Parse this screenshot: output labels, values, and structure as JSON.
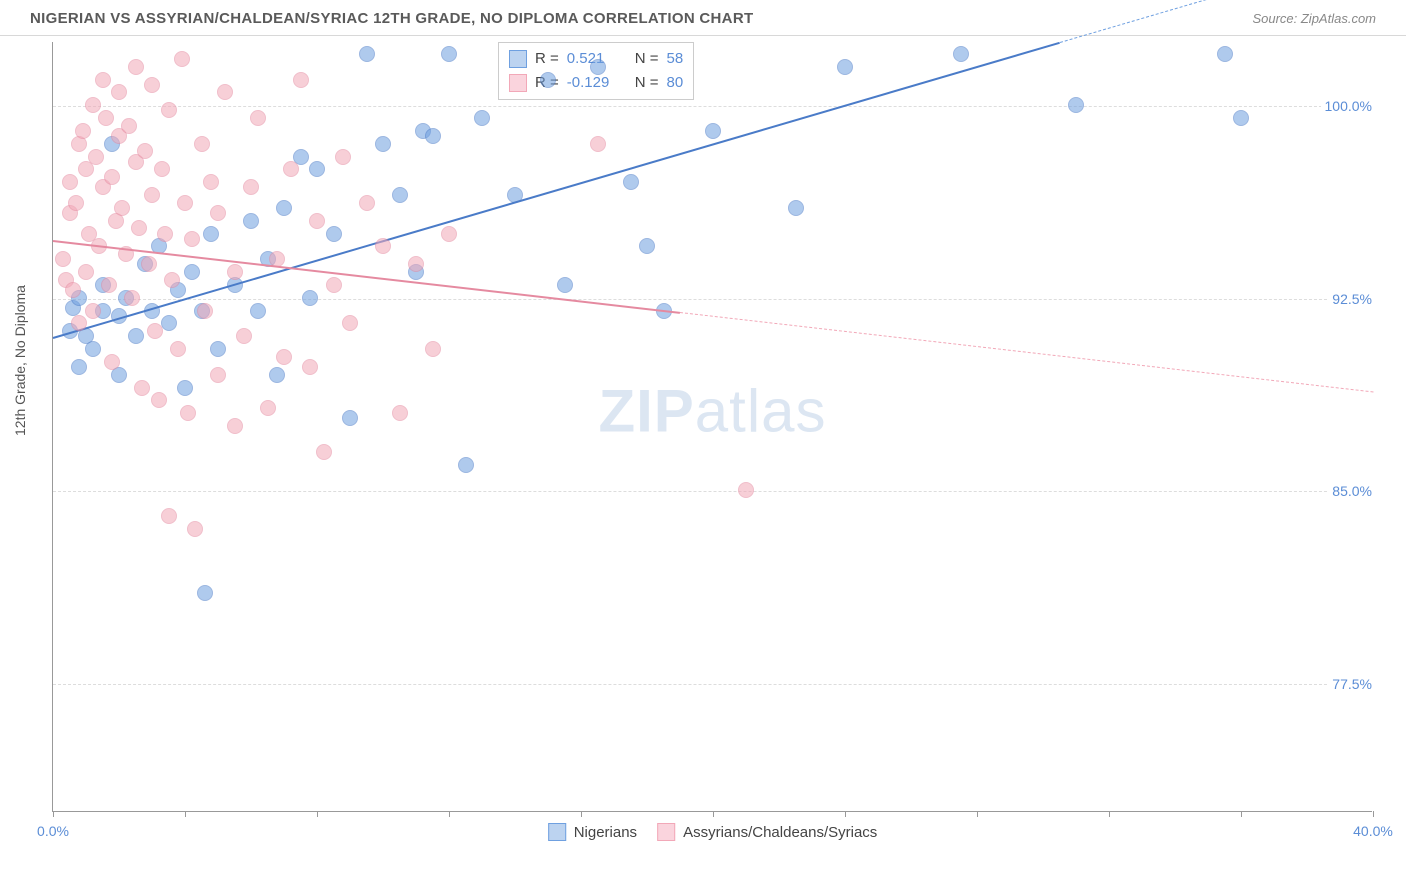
{
  "title": "NIGERIAN VS ASSYRIAN/CHALDEAN/SYRIAC 12TH GRADE, NO DIPLOMA CORRELATION CHART",
  "source": "Source: ZipAtlas.com",
  "ylabel": "12th Grade, No Diploma",
  "watermark_a": "ZIP",
  "watermark_b": "atlas",
  "chart": {
    "type": "scatter",
    "xlim": [
      0,
      40
    ],
    "ylim": [
      72.5,
      102.5
    ],
    "yticks": [
      {
        "v": 77.5,
        "label": "77.5%"
      },
      {
        "v": 85.0,
        "label": "85.0%"
      },
      {
        "v": 92.5,
        "label": "92.5%"
      },
      {
        "v": 100.0,
        "label": "100.0%"
      }
    ],
    "xticks": [
      0,
      4,
      8,
      12,
      16,
      20,
      24,
      28,
      32,
      36,
      40
    ],
    "xtick_labels": {
      "0": "0.0%",
      "40": "40.0%"
    },
    "background_color": "#ffffff",
    "grid_color": "#dddddd",
    "marker_radius": 8,
    "marker_opacity": 0.55,
    "series": [
      {
        "name": "Nigerians",
        "color": "#6fa0e0",
        "border": "#4a7bc8",
        "r_value": "0.521",
        "n_value": "58",
        "trend": {
          "x1": 0,
          "y1": 91.0,
          "x2": 30.5,
          "y2": 102.5,
          "dash_to_x": 40
        },
        "points": [
          [
            0.5,
            91.2
          ],
          [
            0.6,
            92.1
          ],
          [
            0.8,
            92.5
          ],
          [
            0.8,
            89.8
          ],
          [
            1.0,
            91.0
          ],
          [
            1.2,
            90.5
          ],
          [
            1.5,
            92.0
          ],
          [
            1.5,
            93.0
          ],
          [
            1.8,
            98.5
          ],
          [
            2.0,
            91.8
          ],
          [
            2.0,
            89.5
          ],
          [
            2.2,
            92.5
          ],
          [
            2.5,
            91.0
          ],
          [
            2.8,
            93.8
          ],
          [
            3.0,
            92.0
          ],
          [
            3.2,
            94.5
          ],
          [
            3.5,
            91.5
          ],
          [
            3.8,
            92.8
          ],
          [
            4.0,
            89.0
          ],
          [
            4.2,
            93.5
          ],
          [
            4.5,
            92.0
          ],
          [
            4.6,
            81.0
          ],
          [
            4.8,
            95.0
          ],
          [
            5.0,
            90.5
          ],
          [
            5.5,
            93.0
          ],
          [
            6.0,
            95.5
          ],
          [
            6.2,
            92.0
          ],
          [
            6.5,
            94.0
          ],
          [
            6.8,
            89.5
          ],
          [
            7.0,
            96.0
          ],
          [
            7.5,
            98.0
          ],
          [
            7.8,
            92.5
          ],
          [
            8.0,
            97.5
          ],
          [
            8.5,
            95.0
          ],
          [
            9.0,
            87.8
          ],
          [
            9.5,
            102.0
          ],
          [
            10.0,
            98.5
          ],
          [
            10.5,
            96.5
          ],
          [
            11.0,
            93.5
          ],
          [
            11.2,
            99.0
          ],
          [
            11.5,
            98.8
          ],
          [
            12.0,
            102.0
          ],
          [
            12.5,
            86.0
          ],
          [
            13.0,
            99.5
          ],
          [
            14.0,
            96.5
          ],
          [
            15.0,
            101.0
          ],
          [
            15.5,
            93.0
          ],
          [
            16.5,
            101.5
          ],
          [
            17.5,
            97.0
          ],
          [
            18.0,
            94.5
          ],
          [
            18.5,
            92.0
          ],
          [
            20.0,
            99.0
          ],
          [
            22.5,
            96.0
          ],
          [
            24.0,
            101.5
          ],
          [
            27.5,
            102.0
          ],
          [
            31.0,
            100.0
          ],
          [
            35.5,
            102.0
          ],
          [
            36.0,
            99.5
          ]
        ]
      },
      {
        "name": "Assyrians/Chaldeans/Syriacs",
        "color": "#f2a8b8",
        "border": "#e58aa0",
        "r_value": "-0.129",
        "n_value": "80",
        "trend": {
          "x1": 0,
          "y1": 94.8,
          "x2": 19.0,
          "y2": 92.0,
          "dash_to_x": 40
        },
        "points": [
          [
            0.3,
            94.0
          ],
          [
            0.4,
            93.2
          ],
          [
            0.5,
            95.8
          ],
          [
            0.5,
            97.0
          ],
          [
            0.6,
            92.8
          ],
          [
            0.7,
            96.2
          ],
          [
            0.8,
            98.5
          ],
          [
            0.8,
            91.5
          ],
          [
            0.9,
            99.0
          ],
          [
            1.0,
            93.5
          ],
          [
            1.0,
            97.5
          ],
          [
            1.1,
            95.0
          ],
          [
            1.2,
            100.0
          ],
          [
            1.2,
            92.0
          ],
          [
            1.3,
            98.0
          ],
          [
            1.4,
            94.5
          ],
          [
            1.5,
            96.8
          ],
          [
            1.5,
            101.0
          ],
          [
            1.6,
            99.5
          ],
          [
            1.7,
            93.0
          ],
          [
            1.8,
            97.2
          ],
          [
            1.8,
            90.0
          ],
          [
            1.9,
            95.5
          ],
          [
            2.0,
            98.8
          ],
          [
            2.0,
            100.5
          ],
          [
            2.1,
            96.0
          ],
          [
            2.2,
            94.2
          ],
          [
            2.3,
            99.2
          ],
          [
            2.4,
            92.5
          ],
          [
            2.5,
            97.8
          ],
          [
            2.5,
            101.5
          ],
          [
            2.6,
            95.2
          ],
          [
            2.7,
            89.0
          ],
          [
            2.8,
            98.2
          ],
          [
            2.9,
            93.8
          ],
          [
            3.0,
            96.5
          ],
          [
            3.0,
            100.8
          ],
          [
            3.1,
            91.2
          ],
          [
            3.2,
            88.5
          ],
          [
            3.3,
            97.5
          ],
          [
            3.4,
            95.0
          ],
          [
            3.5,
            99.8
          ],
          [
            3.5,
            84.0
          ],
          [
            3.6,
            93.2
          ],
          [
            3.8,
            90.5
          ],
          [
            3.9,
            101.8
          ],
          [
            4.0,
            96.2
          ],
          [
            4.1,
            88.0
          ],
          [
            4.2,
            94.8
          ],
          [
            4.3,
            83.5
          ],
          [
            4.5,
            98.5
          ],
          [
            4.6,
            92.0
          ],
          [
            4.8,
            97.0
          ],
          [
            5.0,
            89.5
          ],
          [
            5.0,
            95.8
          ],
          [
            5.2,
            100.5
          ],
          [
            5.5,
            93.5
          ],
          [
            5.5,
            87.5
          ],
          [
            5.8,
            91.0
          ],
          [
            6.0,
            96.8
          ],
          [
            6.2,
            99.5
          ],
          [
            6.5,
            88.2
          ],
          [
            6.8,
            94.0
          ],
          [
            7.0,
            90.2
          ],
          [
            7.2,
            97.5
          ],
          [
            7.5,
            101.0
          ],
          [
            7.8,
            89.8
          ],
          [
            8.0,
            95.5
          ],
          [
            8.2,
            86.5
          ],
          [
            8.5,
            93.0
          ],
          [
            8.8,
            98.0
          ],
          [
            9.0,
            91.5
          ],
          [
            9.5,
            96.2
          ],
          [
            10.0,
            94.5
          ],
          [
            10.5,
            88.0
          ],
          [
            11.0,
            93.8
          ],
          [
            11.5,
            90.5
          ],
          [
            12.0,
            95.0
          ],
          [
            16.5,
            98.5
          ],
          [
            21.0,
            85.0
          ]
        ]
      }
    ]
  },
  "legend": [
    {
      "label": "Nigerians",
      "fill": "#bcd3f0",
      "border": "#6fa0e0"
    },
    {
      "label": "Assyrians/Chaldeans/Syriacs",
      "fill": "#fad4dd",
      "border": "#f2a8b8"
    }
  ],
  "stats_swatches": [
    {
      "fill": "#bcd3f0",
      "border": "#6fa0e0"
    },
    {
      "fill": "#fad4dd",
      "border": "#f2a8b8"
    }
  ],
  "r_label": "R =",
  "n_label": "N ="
}
